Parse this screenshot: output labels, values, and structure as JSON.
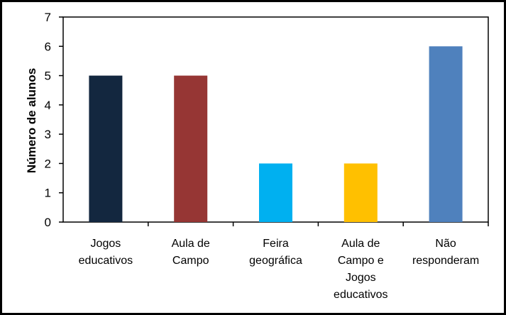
{
  "chart_data": {
    "type": "bar",
    "title": "",
    "xlabel": "",
    "ylabel": "Número de alunos",
    "ylim": [
      0,
      7
    ],
    "yticks": [
      0,
      1,
      2,
      3,
      4,
      5,
      6,
      7
    ],
    "grid": false,
    "legend": "none",
    "categories": [
      [
        "Jogos",
        "educativos"
      ],
      [
        "Aula de",
        "Campo"
      ],
      [
        "Feira",
        "geográfica"
      ],
      [
        "Aula de",
        "Campo e",
        "Jogos",
        "educativos"
      ],
      [
        "Não",
        "responderam"
      ]
    ],
    "values": [
      5,
      5,
      2,
      2,
      6
    ],
    "colors": [
      "#13273f",
      "#963634",
      "#00b0f0",
      "#ffc000",
      "#4f81bd"
    ]
  }
}
